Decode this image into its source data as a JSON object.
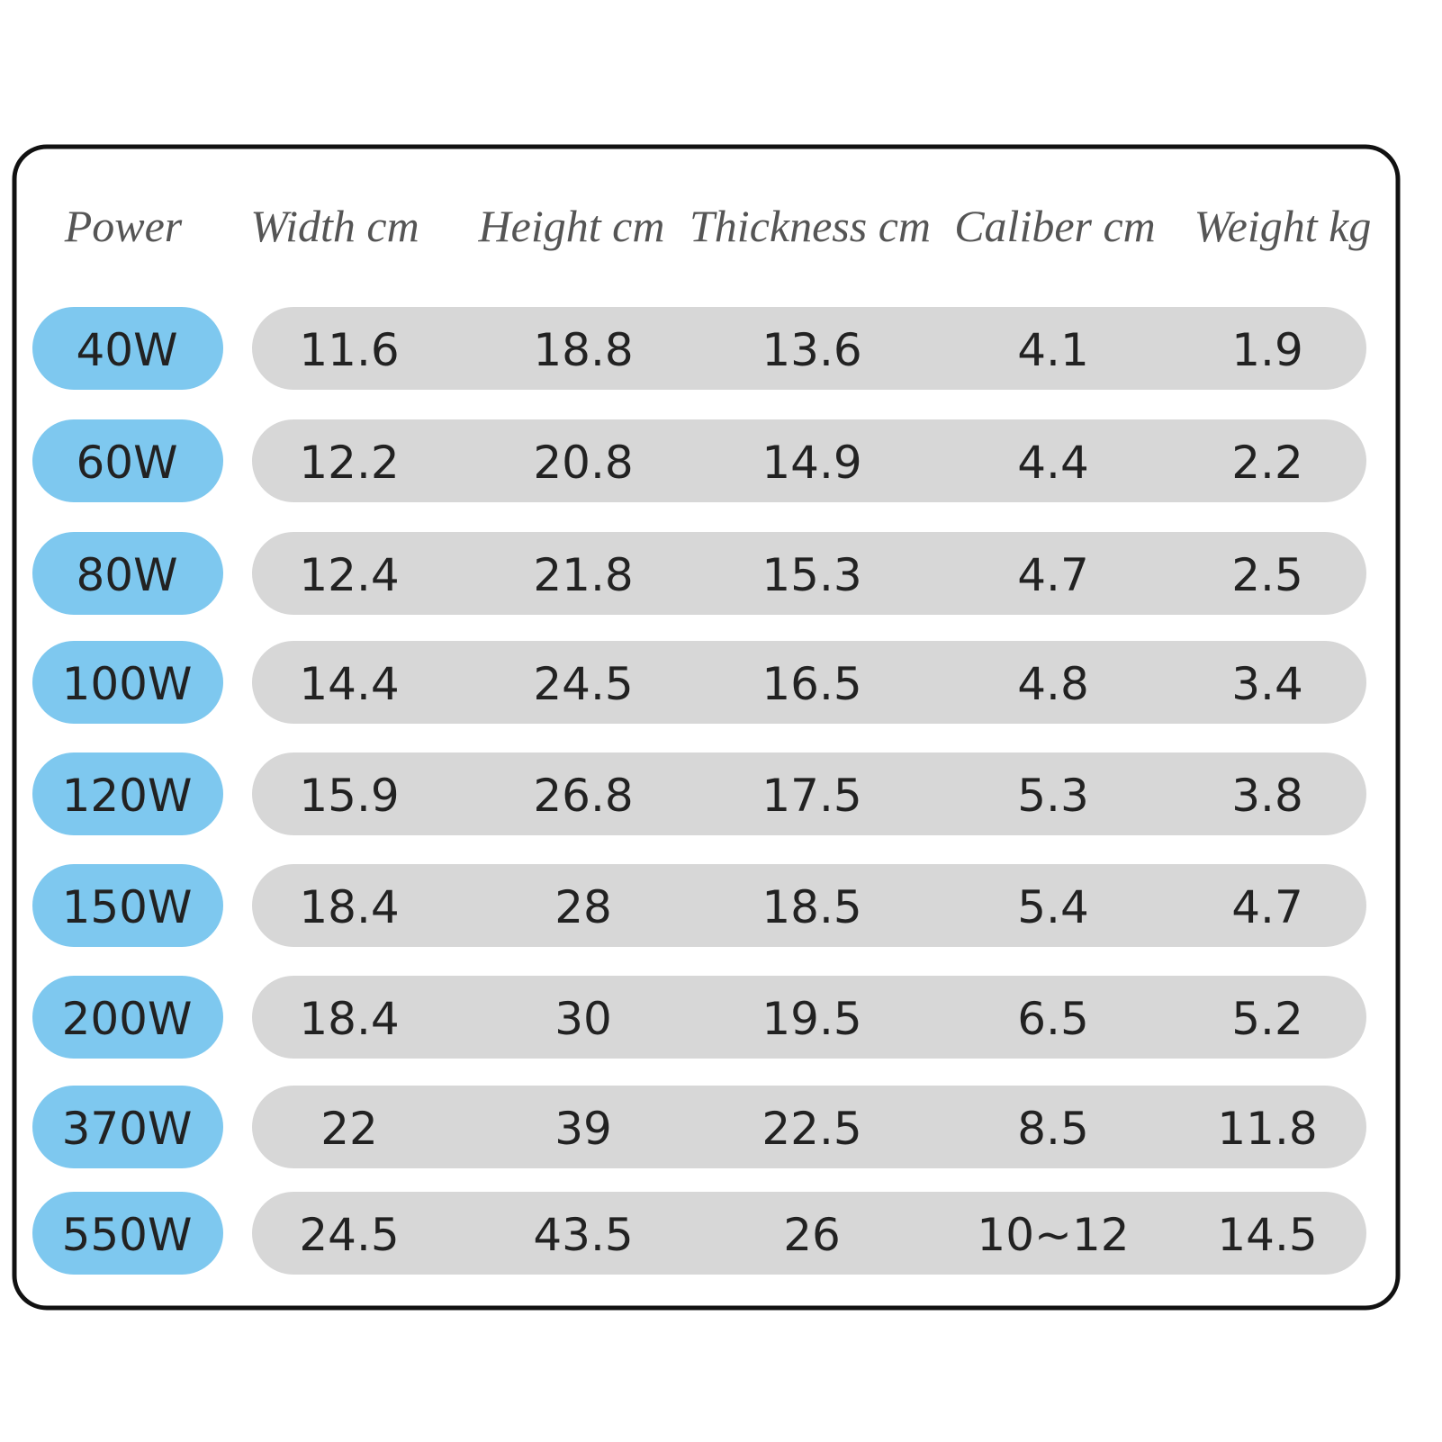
{
  "table": {
    "headers": [
      "Power",
      "Width cm",
      "Height cm",
      "Thickness cm",
      "Caliber cm",
      "Weight kg"
    ],
    "rows": [
      [
        "40W",
        "11.6",
        "18.8",
        "13.6",
        "4.1",
        "1.9"
      ],
      [
        "60W",
        "12.2",
        "20.8",
        "14.9",
        "4.4",
        "2.2"
      ],
      [
        "80W",
        "12.4",
        "21.8",
        "15.3",
        "4.7",
        "2.5"
      ],
      [
        "100W",
        "14.4",
        "24.5",
        "16.5",
        "4.8",
        "3.4"
      ],
      [
        "120W",
        "15.9",
        "26.8",
        "17.5",
        "5.3",
        "3.8"
      ],
      [
        "150W",
        "18.4",
        "28",
        "18.5",
        "5.4",
        "4.7"
      ],
      [
        "200W",
        "18.4",
        "30",
        "19.5",
        "6.5",
        "5.2"
      ],
      [
        "370W",
        "22",
        "39",
        "22.5",
        "8.5",
        "11.8"
      ],
      [
        "550W",
        "24.5",
        "43.5",
        "26",
        "10~12",
        "14.5"
      ]
    ]
  }
}
